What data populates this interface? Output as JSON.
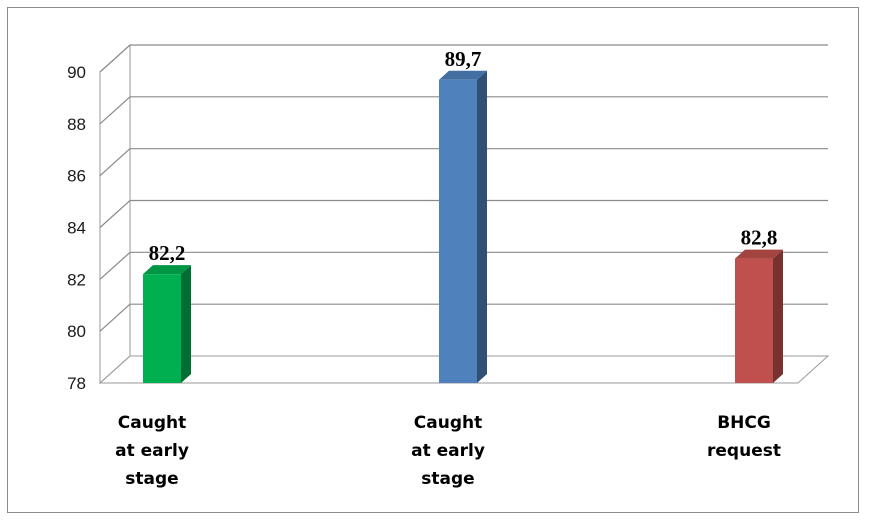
{
  "chart_data": {
    "type": "bar",
    "categories": [
      [
        "Caught",
        "at early",
        "stage"
      ],
      [
        "Caught",
        "at early",
        "stage"
      ],
      [
        "BHCG",
        "request"
      ]
    ],
    "values": [
      82.2,
      89.7,
      82.8
    ],
    "data_labels": [
      "82,2",
      "89,7",
      "82,8"
    ],
    "colors": [
      "#00b050",
      "#4f81bd",
      "#c0504d"
    ],
    "title": "",
    "xlabel": "",
    "ylabel": "",
    "ylim": [
      78,
      90
    ],
    "yticks": [
      "78",
      "80",
      "82",
      "84",
      "86",
      "88",
      "90"
    ],
    "ytick_values": [
      78,
      80,
      82,
      84,
      86,
      88,
      90
    ],
    "grid": true,
    "legend": "none",
    "style": "3d-column"
  }
}
